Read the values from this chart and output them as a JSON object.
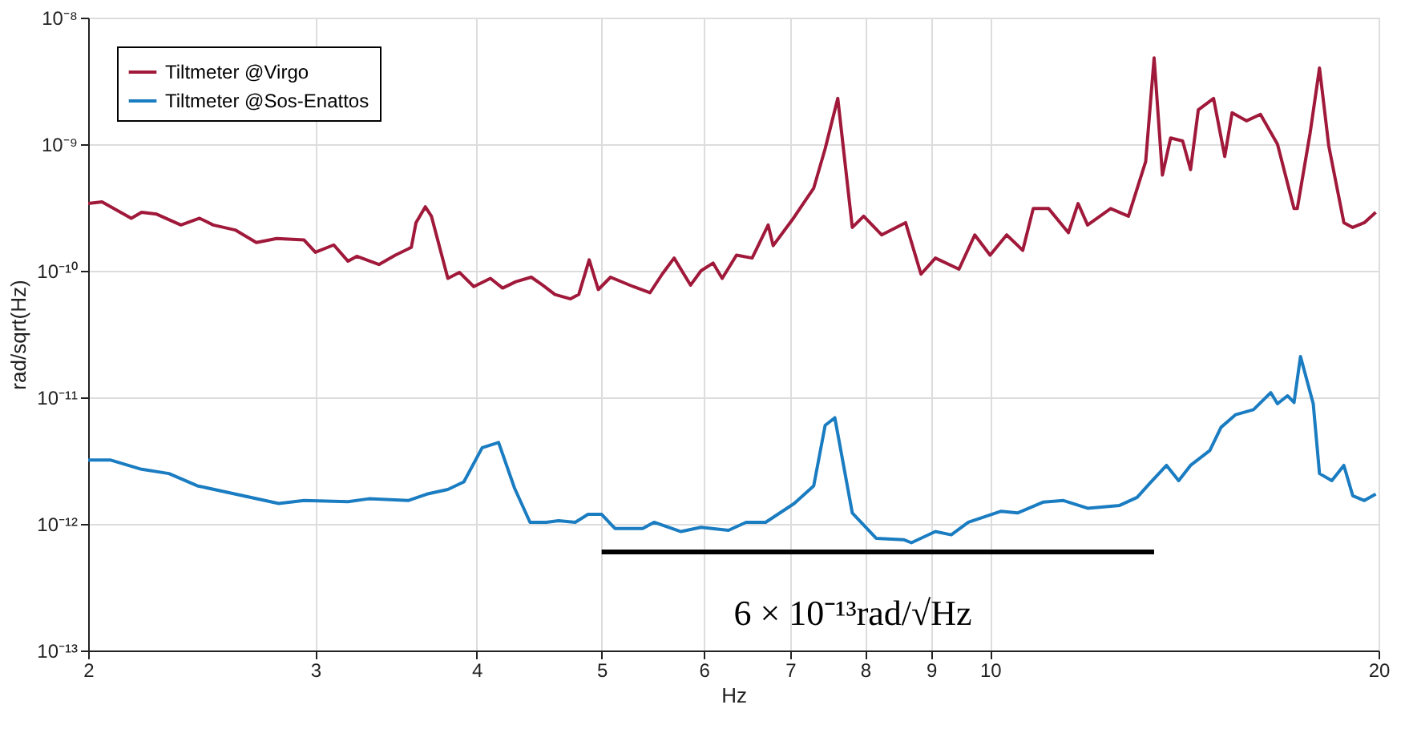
{
  "chart_data": {
    "type": "line",
    "xlabel": "Hz",
    "ylabel": "rad/sqrt(Hz)",
    "log": "xy",
    "grid": true,
    "legend": "top left",
    "line_style": "solid",
    "marker": "none",
    "xlim": [
      2,
      20
    ],
    "xticks": [
      2,
      3,
      4,
      5,
      6,
      7,
      8,
      9,
      10,
      20
    ],
    "ylim": [
      1e-13,
      1e-08
    ],
    "yticks": [
      {
        "value": 1e-13,
        "label": "10⁻¹³"
      },
      {
        "value": 1e-12,
        "label": "10⁻¹²"
      },
      {
        "value": 1e-11,
        "label": "10⁻¹¹"
      },
      {
        "value": 1e-10,
        "label": "10⁻¹⁰"
      },
      {
        "value": 1e-09,
        "label": "10⁻⁹"
      },
      {
        "value": 1e-08,
        "label": "10⁻⁸"
      }
    ],
    "series": [
      {
        "name": "Tiltmeter @Virgo",
        "color": "#a0193a",
        "x": [
          2.0,
          2.05,
          2.16,
          2.2,
          2.26,
          2.36,
          2.44,
          2.5,
          2.6,
          2.7,
          2.8,
          2.94,
          3.0,
          3.1,
          3.18,
          3.23,
          3.36,
          3.46,
          3.56,
          3.59,
          3.65,
          3.69,
          3.8,
          3.88,
          3.98,
          4.1,
          4.19,
          4.29,
          4.41,
          4.5,
          4.6,
          4.73,
          4.8,
          4.89,
          4.97,
          5.08,
          5.29,
          5.45,
          5.57,
          5.69,
          5.86,
          5.97,
          6.1,
          6.2,
          6.36,
          6.54,
          6.73,
          6.79,
          7.03,
          7.3,
          7.45,
          7.62,
          7.82,
          7.98,
          8.24,
          8.6,
          8.84,
          9.07,
          9.46,
          9.73,
          10.0,
          10.3,
          10.6,
          10.8,
          11.1,
          11.5,
          11.7,
          11.9,
          12.4,
          12.8,
          13.2,
          13.4,
          13.6,
          13.8,
          14.1,
          14.3,
          14.5,
          14.9,
          15.2,
          15.4,
          15.8,
          16.2,
          16.7,
          17.2,
          17.3,
          17.7,
          18.0,
          18.3,
          18.8,
          19.1,
          19.5,
          19.9
        ],
        "values": [
          3.4e-10,
          3.5e-10,
          2.6e-10,
          2.9e-10,
          2.8e-10,
          2.3e-10,
          2.6e-10,
          2.3e-10,
          2.1e-10,
          1.67e-10,
          1.8e-10,
          1.75e-10,
          1.4e-10,
          1.6e-10,
          1.19e-10,
          1.3e-10,
          1.12e-10,
          1.33e-10,
          1.53e-10,
          2.4e-10,
          3.2e-10,
          2.7e-10,
          8.7e-11,
          9.7e-11,
          7.5e-11,
          8.7e-11,
          7.3e-11,
          8.2e-11,
          8.9e-11,
          7.7e-11,
          6.5e-11,
          6e-11,
          6.5e-11,
          1.22e-10,
          7.1e-11,
          8.9e-11,
          7.5e-11,
          6.7e-11,
          9.4e-11,
          1.26e-10,
          7.7e-11,
          1e-10,
          1.15e-10,
          8.7e-11,
          1.33e-10,
          1.26e-10,
          2.3e-10,
          1.58e-10,
          2.55e-10,
          4.5e-10,
          9.2e-10,
          2.3e-09,
          2.2e-10,
          2.7e-10,
          1.92e-10,
          2.4e-10,
          9.4e-11,
          1.26e-10,
          1.03e-10,
          1.92e-10,
          1.33e-10,
          1.92e-10,
          1.45e-10,
          3.1e-10,
          3.1e-10,
          2e-10,
          3.4e-10,
          2.3e-10,
          3.1e-10,
          2.7e-10,
          7.3e-10,
          4.8e-09,
          5.7e-10,
          1.12e-09,
          1.06e-09,
          6.3e-10,
          1.87e-09,
          2.3e-09,
          8e-10,
          1.77e-09,
          1.53e-09,
          1.72e-09,
          1e-09,
          3.1e-10,
          3.1e-10,
          1.22e-09,
          4e-09,
          9.7e-10,
          2.4e-10,
          2.2e-10,
          2.4e-10,
          2.9e-10
        ]
      },
      {
        "name": "Tiltmeter @Sos-Enattos",
        "color": "#1a7cc1",
        "x": [
          2.0,
          2.08,
          2.2,
          2.31,
          2.43,
          2.81,
          2.94,
          3.18,
          3.3,
          3.54,
          3.66,
          3.8,
          3.91,
          4.04,
          4.16,
          4.28,
          4.4,
          4.53,
          4.63,
          4.77,
          4.88,
          5.0,
          5.12,
          5.38,
          5.49,
          5.76,
          5.97,
          6.27,
          6.47,
          6.7,
          7.05,
          7.3,
          7.45,
          7.58,
          7.82,
          8.16,
          8.57,
          8.69,
          9.07,
          9.33,
          9.62,
          10.2,
          10.5,
          11.0,
          11.4,
          11.9,
          12.6,
          13.0,
          13.3,
          13.7,
          14.0,
          14.3,
          14.8,
          15.1,
          15.5,
          16.0,
          16.5,
          16.7,
          17.0,
          17.2,
          17.4,
          17.8,
          18.0,
          18.4,
          18.8,
          19.1,
          19.5,
          19.9
        ],
        "values": [
          3.2e-12,
          3.2e-12,
          2.7e-12,
          2.5e-12,
          2e-12,
          1.45e-12,
          1.53e-12,
          1.5e-12,
          1.58e-12,
          1.53e-12,
          1.72e-12,
          1.87e-12,
          2.15e-12,
          4e-12,
          4.4e-12,
          1.92e-12,
          1.03e-12,
          1.03e-12,
          1.06e-12,
          1.03e-12,
          1.19e-12,
          1.19e-12,
          9.2e-13,
          9.2e-13,
          1.03e-12,
          8.7e-13,
          9.4e-13,
          8.9e-13,
          1.03e-12,
          1.03e-12,
          1.45e-12,
          2e-12,
          6e-12,
          6.9e-12,
          1.22e-12,
          7.7e-13,
          7.5e-13,
          7.1e-13,
          8.7e-13,
          8.2e-13,
          1.03e-12,
          1.26e-12,
          1.22e-12,
          1.49e-12,
          1.53e-12,
          1.33e-12,
          1.4e-12,
          1.62e-12,
          2.1e-12,
          2.9e-12,
          2.2e-12,
          2.9e-12,
          3.8e-12,
          5.8e-12,
          7.3e-12,
          8e-12,
          1.09e-11,
          8.9e-12,
          1.03e-11,
          9.1e-12,
          2.1e-11,
          8.9e-12,
          2.5e-12,
          2.2e-12,
          2.9e-12,
          1.67e-12,
          1.53e-12,
          1.72e-12
        ]
      },
      {
        "color": "#000000",
        "x": [
          5,
          13.4
        ],
        "values": [
          6e-13,
          6e-13
        ]
      }
    ],
    "annotations": [
      "6 × 10⁻¹³rad/√Hz"
    ]
  }
}
